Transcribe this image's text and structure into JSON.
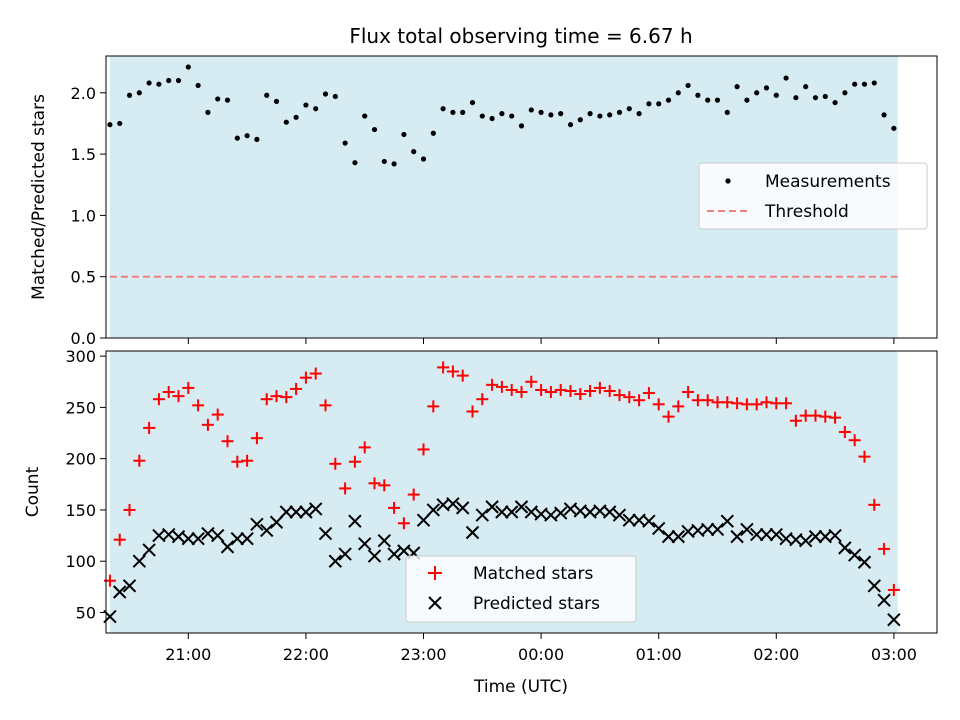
{
  "chart_data": [
    {
      "type": "scatter",
      "title": "Flux total observing time = 6.67 h",
      "xlabel": "",
      "ylabel": "Matched/Predicted stars",
      "xlim": [
        "20:18",
        "03:22"
      ],
      "ylim": [
        0,
        2.3
      ],
      "yticks": [
        "0.0",
        "0.5",
        "1.0",
        "1.5",
        "2.0"
      ],
      "shaded_span": [
        "20:20",
        "03:02"
      ],
      "legend": {
        "placement": "center-right",
        "entries": [
          {
            "label": "Measurements",
            "marker": "dot",
            "color": "#000000"
          },
          {
            "label": "Threshold",
            "marker": "dashed-line",
            "color": "#f08080"
          }
        ]
      },
      "threshold": 0.5,
      "series": [
        {
          "name": "Measurements",
          "color": "#000000",
          "x": [
            "20:20",
            "20:25",
            "20:30",
            "20:35",
            "20:40",
            "20:45",
            "20:50",
            "20:55",
            "21:00",
            "21:05",
            "21:10",
            "21:15",
            "21:20",
            "21:25",
            "21:30",
            "21:35",
            "21:40",
            "21:45",
            "21:50",
            "21:55",
            "22:00",
            "22:05",
            "22:10",
            "22:15",
            "22:20",
            "22:25",
            "22:30",
            "22:35",
            "22:40",
            "22:45",
            "22:50",
            "22:55",
            "23:00",
            "23:05",
            "23:10",
            "23:15",
            "23:20",
            "23:25",
            "23:30",
            "23:35",
            "23:40",
            "23:45",
            "23:50",
            "23:55",
            "00:00",
            "00:05",
            "00:10",
            "00:15",
            "00:20",
            "00:25",
            "00:30",
            "00:35",
            "00:40",
            "00:45",
            "00:50",
            "00:55",
            "01:00",
            "01:05",
            "01:10",
            "01:15",
            "01:20",
            "01:25",
            "01:30",
            "01:35",
            "01:40",
            "01:45",
            "01:50",
            "01:55",
            "02:00",
            "02:05",
            "02:10",
            "02:15",
            "02:20",
            "02:25",
            "02:30",
            "02:35",
            "02:40",
            "02:45",
            "02:50",
            "02:55",
            "03:00"
          ],
          "y": [
            1.74,
            1.75,
            1.98,
            2.0,
            2.08,
            2.07,
            2.1,
            2.1,
            2.21,
            2.06,
            1.84,
            1.95,
            1.94,
            1.63,
            1.65,
            1.62,
            1.98,
            1.93,
            1.76,
            1.8,
            1.9,
            1.87,
            1.99,
            1.97,
            1.59,
            1.43,
            1.81,
            1.7,
            1.44,
            1.42,
            1.66,
            1.52,
            1.46,
            1.67,
            1.87,
            1.84,
            1.84,
            1.92,
            1.81,
            1.79,
            1.83,
            1.81,
            1.73,
            1.86,
            1.84,
            1.82,
            1.83,
            1.74,
            1.78,
            1.83,
            1.81,
            1.82,
            1.84,
            1.87,
            1.83,
            1.91,
            1.91,
            1.94,
            2.0,
            2.06,
            1.98,
            1.94,
            1.94,
            1.84,
            2.05,
            1.94,
            2.0,
            2.04,
            1.98,
            2.12,
            1.96,
            2.05,
            1.96,
            1.97,
            1.92,
            2.0,
            2.07,
            2.07,
            2.08,
            1.82,
            1.71
          ]
        }
      ]
    },
    {
      "type": "scatter",
      "title": "",
      "xlabel": "Time (UTC)",
      "ylabel": "Count",
      "xlim": [
        "20:18",
        "03:22"
      ],
      "ylim": [
        30,
        305
      ],
      "yticks": [
        "50",
        "100",
        "150",
        "200",
        "250",
        "300"
      ],
      "xticks": [
        "21:00",
        "22:00",
        "23:00",
        "00:00",
        "01:00",
        "02:00",
        "03:00"
      ],
      "shaded_span": [
        "20:20",
        "03:02"
      ],
      "legend": {
        "placement": "bottom-center",
        "entries": [
          {
            "label": "Matched stars",
            "marker": "plus",
            "color": "#ff0000"
          },
          {
            "label": "Predicted stars",
            "marker": "x",
            "color": "#000000"
          }
        ]
      },
      "series": [
        {
          "name": "Matched stars",
          "color": "#ff0000",
          "x": [
            "20:20",
            "20:25",
            "20:30",
            "20:35",
            "20:40",
            "20:45",
            "20:50",
            "20:55",
            "21:00",
            "21:05",
            "21:10",
            "21:15",
            "21:20",
            "21:25",
            "21:30",
            "21:35",
            "21:40",
            "21:45",
            "21:50",
            "21:55",
            "22:00",
            "22:05",
            "22:10",
            "22:15",
            "22:20",
            "22:25",
            "22:30",
            "22:35",
            "22:40",
            "22:45",
            "22:50",
            "22:55",
            "23:00",
            "23:05",
            "23:10",
            "23:15",
            "23:20",
            "23:25",
            "23:30",
            "23:35",
            "23:40",
            "23:45",
            "23:50",
            "23:55",
            "00:00",
            "00:05",
            "00:10",
            "00:15",
            "00:20",
            "00:25",
            "00:30",
            "00:35",
            "00:40",
            "00:45",
            "00:50",
            "00:55",
            "01:00",
            "01:05",
            "01:10",
            "01:15",
            "01:20",
            "01:25",
            "01:30",
            "01:35",
            "01:40",
            "01:45",
            "01:50",
            "01:55",
            "02:00",
            "02:05",
            "02:10",
            "02:15",
            "02:20",
            "02:25",
            "02:30",
            "02:35",
            "02:40",
            "02:45",
            "02:50",
            "02:55",
            "03:00"
          ],
          "y": [
            81,
            121,
            150,
            198,
            230,
            258,
            265,
            261,
            269,
            252,
            233,
            243,
            217,
            197,
            198,
            220,
            258,
            261,
            260,
            268,
            279,
            283,
            252,
            195,
            171,
            197,
            211,
            176,
            174,
            152,
            137,
            165,
            209,
            251,
            289,
            285,
            281,
            246,
            258,
            272,
            270,
            267,
            265,
            275,
            267,
            265,
            267,
            266,
            263,
            266,
            269,
            266,
            262,
            260,
            257,
            264,
            253,
            241,
            251,
            265,
            257,
            257,
            255,
            255,
            254,
            253,
            253,
            255,
            254,
            254,
            237,
            242,
            242,
            241,
            240,
            226,
            218,
            202,
            155,
            112,
            72
          ]
        },
        {
          "name": "Predicted stars",
          "color": "#000000",
          "x": [
            "20:20",
            "20:25",
            "20:30",
            "20:35",
            "20:40",
            "20:45",
            "20:50",
            "20:55",
            "21:00",
            "21:05",
            "21:10",
            "21:15",
            "21:20",
            "21:25",
            "21:30",
            "21:35",
            "21:40",
            "21:45",
            "21:50",
            "21:55",
            "22:00",
            "22:05",
            "22:10",
            "22:15",
            "22:20",
            "22:25",
            "22:30",
            "22:35",
            "22:40",
            "22:45",
            "22:50",
            "22:55",
            "23:00",
            "23:05",
            "23:10",
            "23:15",
            "23:20",
            "23:25",
            "23:30",
            "23:35",
            "23:40",
            "23:45",
            "23:50",
            "23:55",
            "00:00",
            "00:05",
            "00:10",
            "00:15",
            "00:20",
            "00:25",
            "00:30",
            "00:35",
            "00:40",
            "00:45",
            "00:50",
            "00:55",
            "01:00",
            "01:05",
            "01:10",
            "01:15",
            "01:20",
            "01:25",
            "01:30",
            "01:35",
            "01:40",
            "01:45",
            "01:50",
            "01:55",
            "02:00",
            "02:05",
            "02:10",
            "02:15",
            "02:20",
            "02:25",
            "02:30",
            "02:35",
            "02:40",
            "02:45",
            "02:50",
            "02:55",
            "03:00"
          ],
          "y": [
            46,
            70,
            76,
            100,
            111,
            125,
            126,
            124,
            122,
            122,
            127,
            125,
            114,
            122,
            122,
            136,
            130,
            138,
            148,
            148,
            148,
            151,
            127,
            100,
            107,
            139,
            117,
            105,
            120,
            107,
            110,
            108,
            140,
            150,
            155,
            156,
            152,
            128,
            145,
            153,
            148,
            148,
            153,
            148,
            146,
            145,
            147,
            151,
            149,
            148,
            149,
            148,
            145,
            140,
            140,
            139,
            132,
            124,
            124,
            129,
            130,
            131,
            131,
            139,
            124,
            131,
            126,
            126,
            126,
            122,
            121,
            120,
            124,
            124,
            125,
            113,
            106,
            99,
            76,
            62,
            43
          ]
        }
      ]
    }
  ]
}
